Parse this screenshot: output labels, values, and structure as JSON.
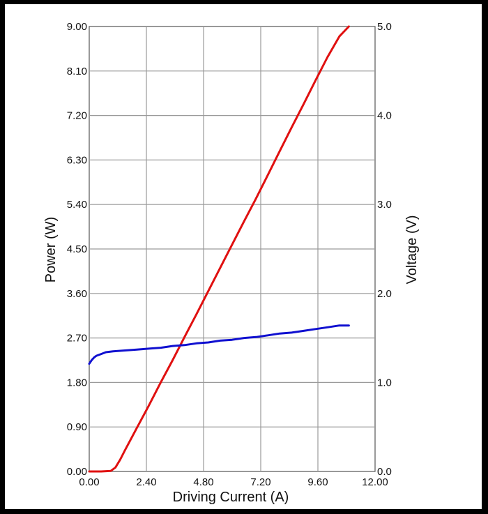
{
  "chart_data": {
    "type": "line",
    "title": "",
    "xlabel": "Driving Current (A)",
    "ylabel_left": "Power (W)",
    "ylabel_right": "Voltage (V)",
    "xlim": [
      0,
      12
    ],
    "ylim_left": [
      0,
      9
    ],
    "ylim_right": [
      0,
      5
    ],
    "x_ticks": [
      "0.00",
      "2.40",
      "4.80",
      "7.20",
      "9.60",
      "12.00"
    ],
    "y_left_ticks": [
      "0.00",
      "0.90",
      "1.80",
      "2.70",
      "3.60",
      "4.50",
      "5.40",
      "6.30",
      "7.20",
      "8.10",
      "9.00"
    ],
    "y_right_ticks": [
      "0.0",
      "1.0",
      "2.0",
      "3.0",
      "4.0",
      "5.0"
    ],
    "grid": true,
    "series": [
      {
        "axis": "left",
        "color": "#e01010",
        "x": [
          0.0,
          0.5,
          0.9,
          1.1,
          1.3,
          1.5,
          2.0,
          2.5,
          3.0,
          3.5,
          4.0,
          4.5,
          5.0,
          5.5,
          6.0,
          6.5,
          7.0,
          7.5,
          8.0,
          8.5,
          9.0,
          9.5,
          10.0,
          10.5,
          10.9
        ],
        "y": [
          0.0,
          0.0,
          0.01,
          0.08,
          0.24,
          0.43,
          0.88,
          1.33,
          1.8,
          2.25,
          2.72,
          3.18,
          3.65,
          4.12,
          4.59,
          5.06,
          5.52,
          6.0,
          6.48,
          6.96,
          7.43,
          7.91,
          8.38,
          8.8,
          9.0
        ]
      },
      {
        "axis": "right",
        "color": "#1010d0",
        "x": [
          0.0,
          0.1,
          0.2,
          0.3,
          0.5,
          0.7,
          1.0,
          1.5,
          2.0,
          2.5,
          3.0,
          3.5,
          4.0,
          4.5,
          5.0,
          5.5,
          6.0,
          6.5,
          7.0,
          7.5,
          8.0,
          8.5,
          9.0,
          9.5,
          10.0,
          10.5,
          10.9
        ],
        "y": [
          1.21,
          1.25,
          1.28,
          1.3,
          1.32,
          1.34,
          1.35,
          1.36,
          1.37,
          1.38,
          1.39,
          1.41,
          1.42,
          1.44,
          1.45,
          1.47,
          1.48,
          1.5,
          1.51,
          1.53,
          1.55,
          1.56,
          1.58,
          1.6,
          1.62,
          1.64,
          1.64
        ]
      }
    ]
  }
}
